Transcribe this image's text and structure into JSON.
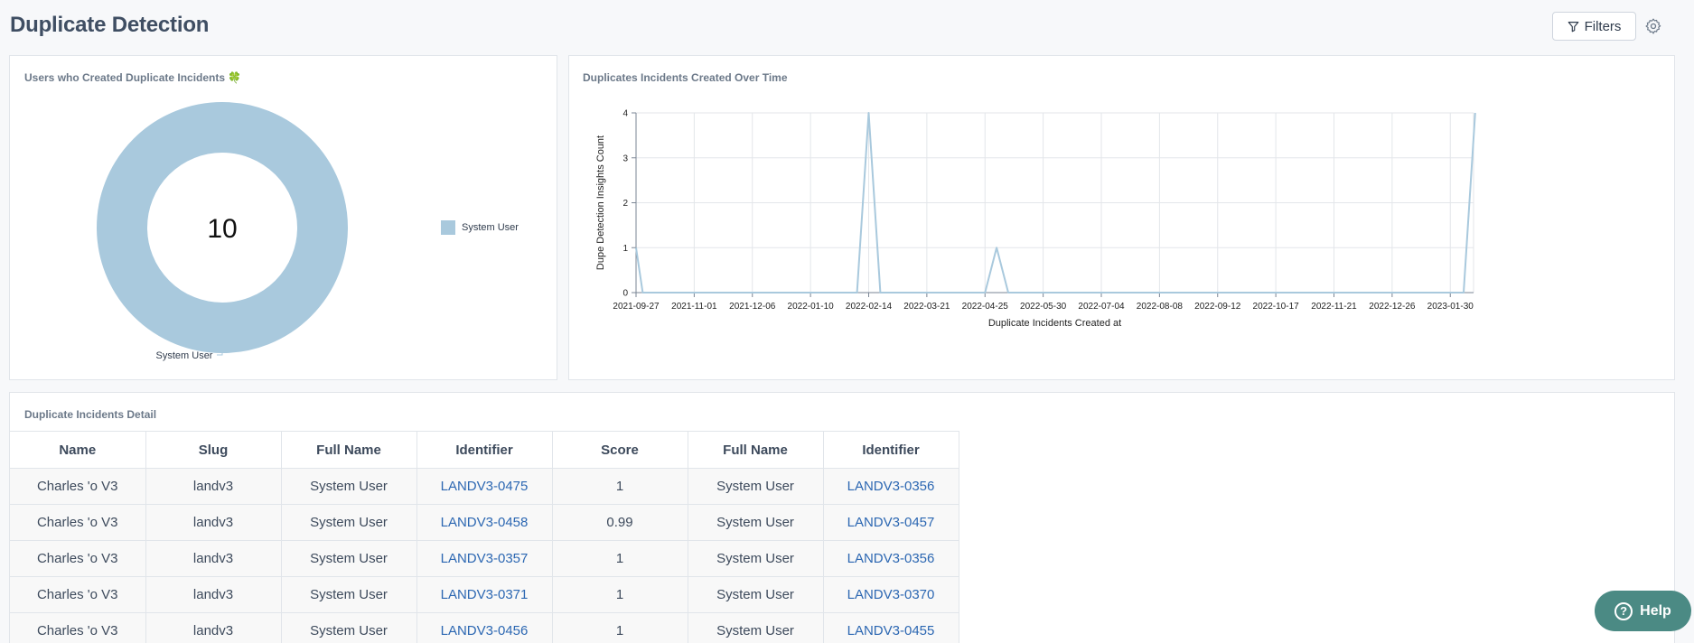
{
  "page": {
    "title": "Duplicate Detection",
    "filters_label": "Filters",
    "help_label": "Help"
  },
  "donut_card": {
    "title": "Users who Created Duplicate Incidents 🍀",
    "center_value": "10",
    "slice_label": "System User",
    "legend_label": "System User",
    "color": "#a9c9dd"
  },
  "line_card": {
    "title": "Duplicates Incidents Created Over Time"
  },
  "chart_data": {
    "type": "line",
    "xlabel": "Duplicate Incidents Created at",
    "ylabel": "Dupe Detection Insights Count",
    "ylim": [
      0,
      4
    ],
    "yticks": [
      "0",
      "1",
      "2",
      "3",
      "4"
    ],
    "xticks": [
      "2021-09-27",
      "2021-11-01",
      "2021-12-06",
      "2022-01-10",
      "2022-02-14",
      "2022-03-21",
      "2022-04-25",
      "2022-05-30",
      "2022-07-04",
      "2022-08-08",
      "2022-09-12",
      "2022-10-17",
      "2022-11-21",
      "2022-12-26",
      "2023-01-30"
    ],
    "grid": true,
    "color": "#a9c9dd",
    "points": [
      {
        "x": "2021-09-27",
        "y": 1
      },
      {
        "x": "2021-10-01",
        "y": 0
      },
      {
        "x": "2022-02-07",
        "y": 0
      },
      {
        "x": "2022-02-14",
        "y": 4
      },
      {
        "x": "2022-02-21",
        "y": 0
      },
      {
        "x": "2022-04-25",
        "y": 0
      },
      {
        "x": "2022-05-02",
        "y": 1
      },
      {
        "x": "2022-05-09",
        "y": 0
      },
      {
        "x": "2023-01-30",
        "y": 0
      },
      {
        "x": "2023-02-07",
        "y": 0
      },
      {
        "x": "2023-02-14",
        "y": 4
      }
    ]
  },
  "table_card": {
    "title": "Duplicate Incidents Detail",
    "columns": [
      "Name",
      "Slug",
      "Full Name",
      "Identifier",
      "Score",
      "Full Name",
      "Identifier"
    ],
    "rows": [
      [
        "Charles 'o V3",
        "landv3",
        "System User",
        "LANDV3-0475",
        "1",
        "System User",
        "LANDV3-0356"
      ],
      [
        "Charles 'o V3",
        "landv3",
        "System User",
        "LANDV3-0458",
        "0.99",
        "System User",
        "LANDV3-0457"
      ],
      [
        "Charles 'o V3",
        "landv3",
        "System User",
        "LANDV3-0357",
        "1",
        "System User",
        "LANDV3-0356"
      ],
      [
        "Charles 'o V3",
        "landv3",
        "System User",
        "LANDV3-0371",
        "1",
        "System User",
        "LANDV3-0370"
      ],
      [
        "Charles 'o V3",
        "landv3",
        "System User",
        "LANDV3-0456",
        "1",
        "System User",
        "LANDV3-0455"
      ]
    ]
  }
}
